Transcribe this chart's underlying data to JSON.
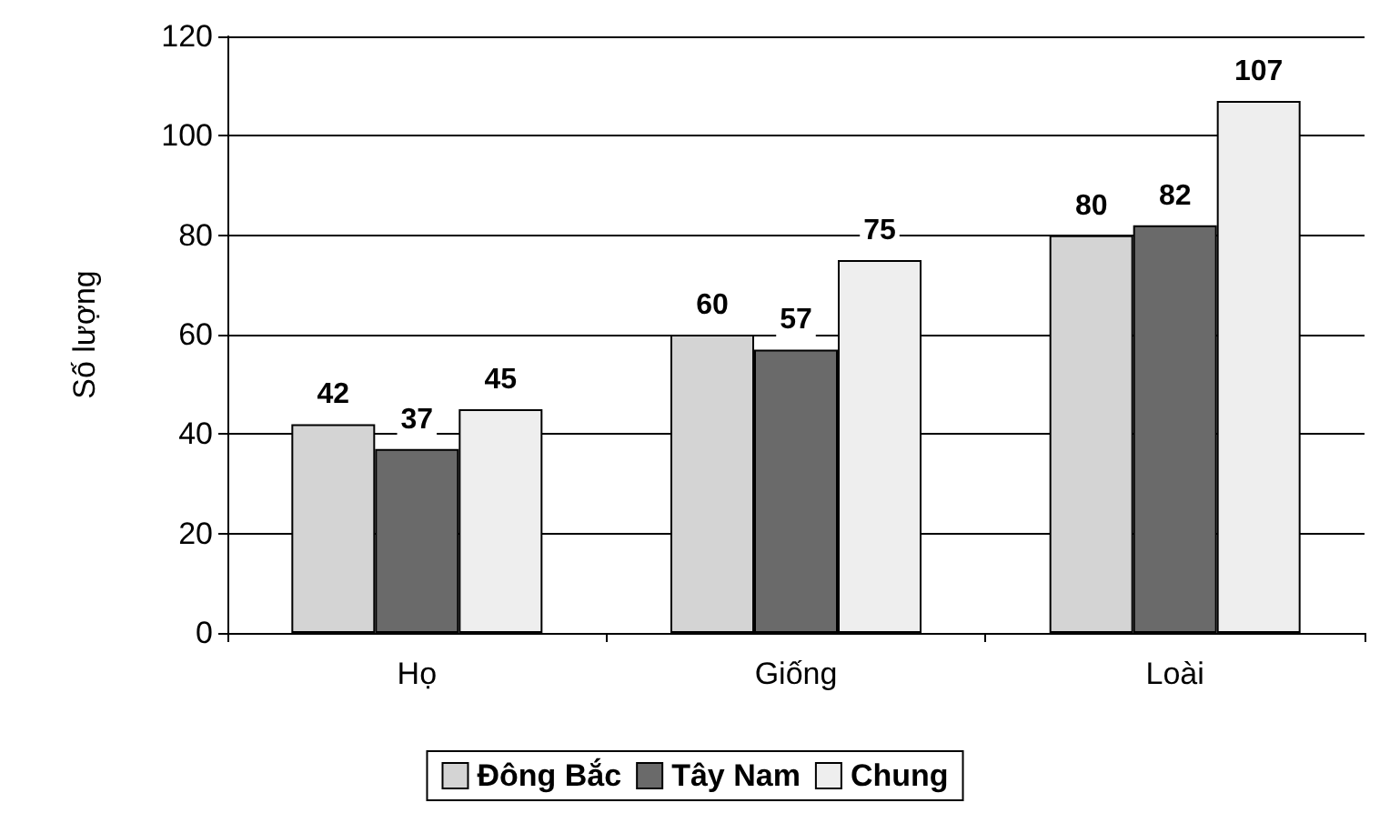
{
  "chart_data": {
    "type": "bar",
    "ylabel": "Số lượng",
    "categories": [
      "Họ",
      "Giống",
      "Loài"
    ],
    "series": [
      {
        "name": "Đông Bắc",
        "color": "#d4d4d4",
        "values": [
          42,
          60,
          80
        ]
      },
      {
        "name": "Tây Nam",
        "color": "#6a6a6a",
        "values": [
          37,
          57,
          82
        ]
      },
      {
        "name": "Chung",
        "color": "#eeeeee",
        "values": [
          45,
          75,
          107
        ]
      }
    ],
    "ylim": [
      0,
      120
    ],
    "yticks": [
      0,
      20,
      40,
      60,
      80,
      100,
      120
    ],
    "grid": "y",
    "legend": "bottom",
    "data_labels": true
  }
}
